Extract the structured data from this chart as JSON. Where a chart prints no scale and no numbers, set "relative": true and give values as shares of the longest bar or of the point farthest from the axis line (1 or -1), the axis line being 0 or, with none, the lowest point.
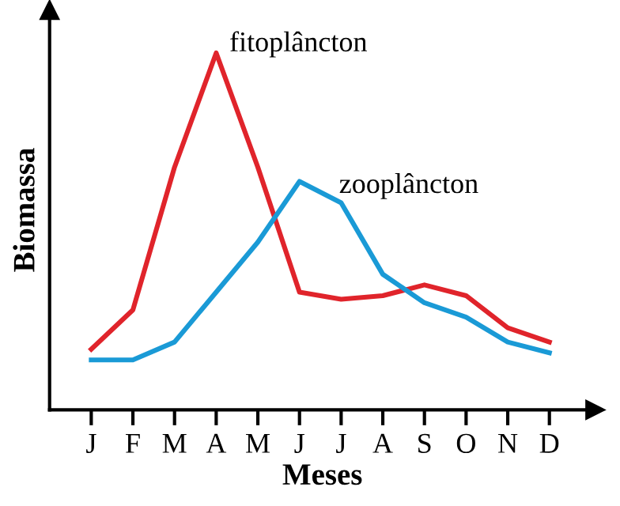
{
  "chart_data": {
    "type": "line",
    "relative": true,
    "xlabel": "Meses",
    "ylabel": "Biomassa",
    "categories": [
      "J",
      "F",
      "M",
      "A",
      "M",
      "J",
      "J",
      "A",
      "S",
      "O",
      "N",
      "D"
    ],
    "grid": false,
    "marker": "none",
    "line_style": "solid",
    "series": [
      {
        "name": "fitoplâncton",
        "color": "#e0242b",
        "values": [
          0.17,
          0.28,
          0.68,
          1,
          0.68,
          0.33,
          0.31,
          0.32,
          0.35,
          0.32,
          0.23,
          0.19
        ]
      },
      {
        "name": "zooplâncton",
        "color": "#1a9ad6",
        "values": [
          0.14,
          0.14,
          0.19,
          0.33,
          0.47,
          0.64,
          0.58,
          0.38,
          0.3,
          0.26,
          0.19,
          0.16
        ]
      }
    ]
  }
}
